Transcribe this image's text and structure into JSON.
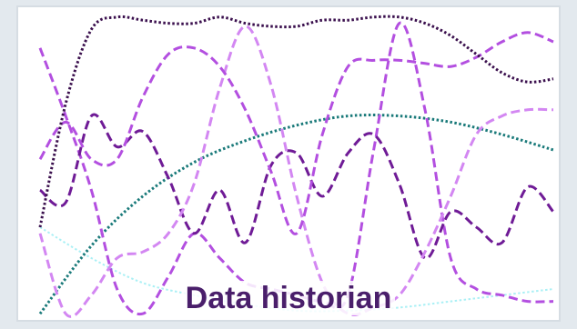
{
  "caption": "Data historian",
  "colors": {
    "background": "#e3e9ee",
    "panel": "#ffffff",
    "caption": "#4a1f6b"
  },
  "chart_data": {
    "type": "line",
    "title": "",
    "xlabel": "",
    "ylabel": "",
    "xlim": [
      0,
      100
    ],
    "ylim": [
      0,
      100
    ],
    "grid": false,
    "legend": "none",
    "series": [
      {
        "color": "#3a0f4d",
        "dash": "dotted",
        "width": 3,
        "x": [
          0,
          5,
          10,
          15,
          20,
          25,
          30,
          35,
          40,
          45,
          50,
          55,
          60,
          65,
          70,
          75,
          80,
          85,
          90,
          95,
          100
        ],
        "y": [
          30,
          70,
          94,
          98,
          97,
          96,
          96,
          98,
          96,
          95,
          95,
          97,
          97,
          98,
          98,
          96,
          92,
          86,
          80,
          77,
          78
        ]
      },
      {
        "color": "#b34fe0",
        "dash": "dashed",
        "width": 3,
        "x": [
          0,
          5,
          10,
          15,
          20,
          25,
          30,
          35,
          40,
          45,
          50,
          55,
          60,
          65,
          70,
          75,
          80,
          85,
          90,
          95,
          100
        ],
        "y": [
          52,
          64,
          52,
          52,
          72,
          86,
          88,
          82,
          68,
          48,
          28,
          60,
          82,
          84,
          84,
          83,
          82,
          85,
          90,
          93,
          90
        ]
      },
      {
        "color": "#d387f2",
        "dash": "dashed",
        "width": 3,
        "x": [
          0,
          5,
          10,
          15,
          20,
          25,
          30,
          35,
          40,
          45,
          50,
          55,
          60,
          65,
          70,
          75,
          80,
          85,
          90,
          95,
          100
        ],
        "y": [
          28,
          2,
          8,
          20,
          22,
          28,
          44,
          75,
          95,
          76,
          40,
          12,
          2,
          4,
          8,
          22,
          40,
          60,
          66,
          68,
          68
        ]
      },
      {
        "color": "#6f1b96",
        "dash": "dashed",
        "width": 3,
        "x": [
          0,
          5,
          10,
          15,
          20,
          25,
          30,
          35,
          40,
          45,
          50,
          55,
          60,
          65,
          70,
          75,
          80,
          85,
          90,
          95,
          100
        ],
        "y": [
          42,
          38,
          66,
          56,
          61,
          46,
          28,
          42,
          25,
          50,
          54,
          40,
          54,
          60,
          44,
          20,
          35,
          30,
          25,
          43,
          35
        ]
      },
      {
        "color": "#b34fe0",
        "dash": "dashed",
        "width": 3,
        "x": [
          0,
          5,
          10,
          15,
          20,
          25,
          30,
          35,
          40,
          45,
          50,
          55,
          60,
          65,
          70,
          75,
          80,
          85,
          90,
          95,
          100
        ],
        "y": [
          88,
          66,
          42,
          10,
          2,
          14,
          28,
          20,
          12,
          10,
          8,
          6,
          8,
          55,
          96,
          68,
          20,
          10,
          8,
          6,
          6
        ]
      },
      {
        "color": "#1a7a7a",
        "dash": "dotted",
        "width": 3,
        "x": [
          0,
          10,
          20,
          30,
          40,
          50,
          60,
          70,
          80,
          90,
          100
        ],
        "y": [
          2,
          24,
          40,
          51,
          58,
          63,
          66,
          66,
          64,
          60,
          55
        ]
      },
      {
        "color": "#aaf0f5",
        "dash": "dotted",
        "width": 2,
        "x": [
          0,
          10,
          20,
          30,
          40,
          50,
          60,
          70,
          80,
          90,
          100
        ],
        "y": [
          30,
          20,
          12,
          8,
          5,
          3,
          3,
          4,
          6,
          8,
          10
        ]
      }
    ]
  }
}
